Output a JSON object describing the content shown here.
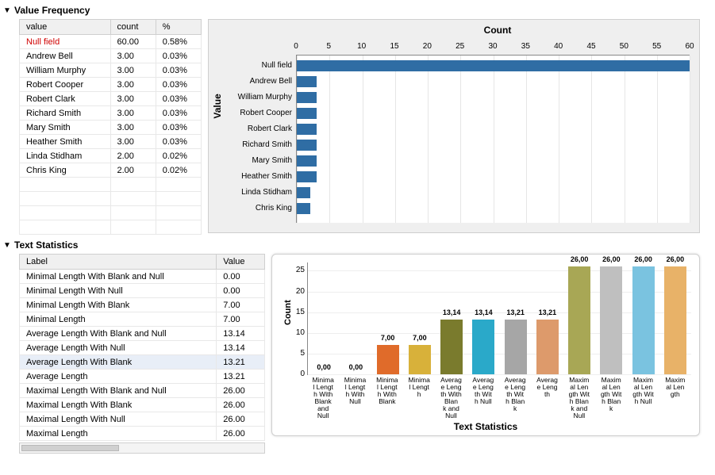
{
  "sections": {
    "value_frequency": {
      "title": "Value Frequency"
    },
    "text_statistics": {
      "title": "Text Statistics"
    }
  },
  "freq_table": {
    "columns": [
      "value",
      "count",
      "%"
    ],
    "rows": [
      {
        "value": "Null field",
        "count": "60.00",
        "pct": "0.58%",
        "is_null": true
      },
      {
        "value": "Andrew Bell",
        "count": "3.00",
        "pct": "0.03%"
      },
      {
        "value": "William Murphy",
        "count": "3.00",
        "pct": "0.03%"
      },
      {
        "value": "Robert Cooper",
        "count": "3.00",
        "pct": "0.03%"
      },
      {
        "value": "Robert Clark",
        "count": "3.00",
        "pct": "0.03%"
      },
      {
        "value": "Richard Smith",
        "count": "3.00",
        "pct": "0.03%"
      },
      {
        "value": "Mary Smith",
        "count": "3.00",
        "pct": "0.03%"
      },
      {
        "value": "Heather Smith",
        "count": "3.00",
        "pct": "0.03%"
      },
      {
        "value": "Linda Stidham",
        "count": "2.00",
        "pct": "0.02%"
      },
      {
        "value": "Chris King",
        "count": "2.00",
        "pct": "0.02%"
      }
    ],
    "empty_rows": 4
  },
  "freq_chart": {
    "type": "bar-horizontal",
    "x_title": "Count",
    "y_title": "Value",
    "xlim": [
      0,
      60
    ],
    "xtick_step": 5,
    "bar_color": "#2f6da4",
    "background": "#efefef",
    "plot_background": "#ffffff",
    "grid_color": "#e6e6e6",
    "categories": [
      "Null field",
      "Andrew Bell",
      "William Murphy",
      "Robert Cooper",
      "Robert Clark",
      "Richard Smith",
      "Mary Smith",
      "Heather Smith",
      "Linda Stidham",
      "Chris King"
    ],
    "values": [
      60,
      3,
      3,
      3,
      3,
      3,
      3,
      3,
      2,
      2
    ]
  },
  "stats_table": {
    "columns": [
      "Label",
      "Value"
    ],
    "rows": [
      {
        "label": "Minimal Length With Blank and Null",
        "value": "0.00"
      },
      {
        "label": "Minimal Length With Null",
        "value": "0.00"
      },
      {
        "label": "Minimal Length With Blank",
        "value": "7.00"
      },
      {
        "label": "Minimal Length",
        "value": "7.00"
      },
      {
        "label": "Average Length With Blank and Null",
        "value": "13.14"
      },
      {
        "label": "Average Length With Null",
        "value": "13.14"
      },
      {
        "label": "Average Length With Blank",
        "value": "13.21",
        "highlight": true
      },
      {
        "label": "Average Length",
        "value": "13.21"
      },
      {
        "label": "Maximal Length With Blank and Null",
        "value": "26.00"
      },
      {
        "label": "Maximal Length With Blank",
        "value": "26.00"
      },
      {
        "label": "Maximal Length With Null",
        "value": "26.00"
      },
      {
        "label": "Maximal Length",
        "value": "26.00"
      }
    ]
  },
  "stats_chart": {
    "type": "bar",
    "x_title": "Text Statistics",
    "y_title": "Count",
    "ylim": [
      0,
      27
    ],
    "yticks": [
      0,
      5,
      10,
      15,
      20,
      25
    ],
    "grid_color": "#eeeeee",
    "background": "#ffffff",
    "bars": [
      {
        "label_lines": [
          "Minima",
          "l Lengt",
          "h With",
          "Blank",
          "and",
          "Null"
        ],
        "value": 0.0,
        "display": "0,00",
        "color": "#6da8dc"
      },
      {
        "label_lines": [
          "Minima",
          "l Lengt",
          "h With",
          "Null"
        ],
        "value": 0.0,
        "display": "0,00",
        "color": "#e06b2a"
      },
      {
        "label_lines": [
          "Minima",
          "l Lengt",
          "h With",
          "Blank"
        ],
        "value": 7.0,
        "display": "7,00",
        "color": "#e06b2a"
      },
      {
        "label_lines": [
          "Minima",
          "l Lengt",
          "h"
        ],
        "value": 7.0,
        "display": "7,00",
        "color": "#d8b13a"
      },
      {
        "label_lines": [
          "Averag",
          "e Leng",
          "th With",
          "Blan",
          "k and",
          "Null"
        ],
        "value": 13.14,
        "display": "13,14",
        "color": "#7a7b2d"
      },
      {
        "label_lines": [
          "Averag",
          "e Leng",
          "th Wit",
          "h Null"
        ],
        "value": 13.14,
        "display": "13,14",
        "color": "#2aa9c9"
      },
      {
        "label_lines": [
          "Averag",
          "e Leng",
          "th Wit",
          "h Blan",
          "k"
        ],
        "value": 13.21,
        "display": "13,21",
        "color": "#a6a6a6"
      },
      {
        "label_lines": [
          "Averag",
          "e Leng",
          "th"
        ],
        "value": 13.21,
        "display": "13,21",
        "color": "#dd9a6b"
      },
      {
        "label_lines": [
          "Maxim",
          "al Len",
          "gth Wit",
          "h Blan",
          "k and",
          "Null"
        ],
        "value": 26.0,
        "display": "26,00",
        "color": "#a8a755"
      },
      {
        "label_lines": [
          "Maxim",
          "al Len",
          "gth Wit",
          "h Blan",
          "k"
        ],
        "value": 26.0,
        "display": "26,00",
        "color": "#bfbfbf"
      },
      {
        "label_lines": [
          "Maxim",
          "al Len",
          "gth Wit",
          "h Null"
        ],
        "value": 26.0,
        "display": "26,00",
        "color": "#7ac3e0"
      },
      {
        "label_lines": [
          "Maxim",
          "al Len",
          "gth"
        ],
        "value": 26.0,
        "display": "26,00",
        "color": "#e8b268"
      }
    ]
  }
}
